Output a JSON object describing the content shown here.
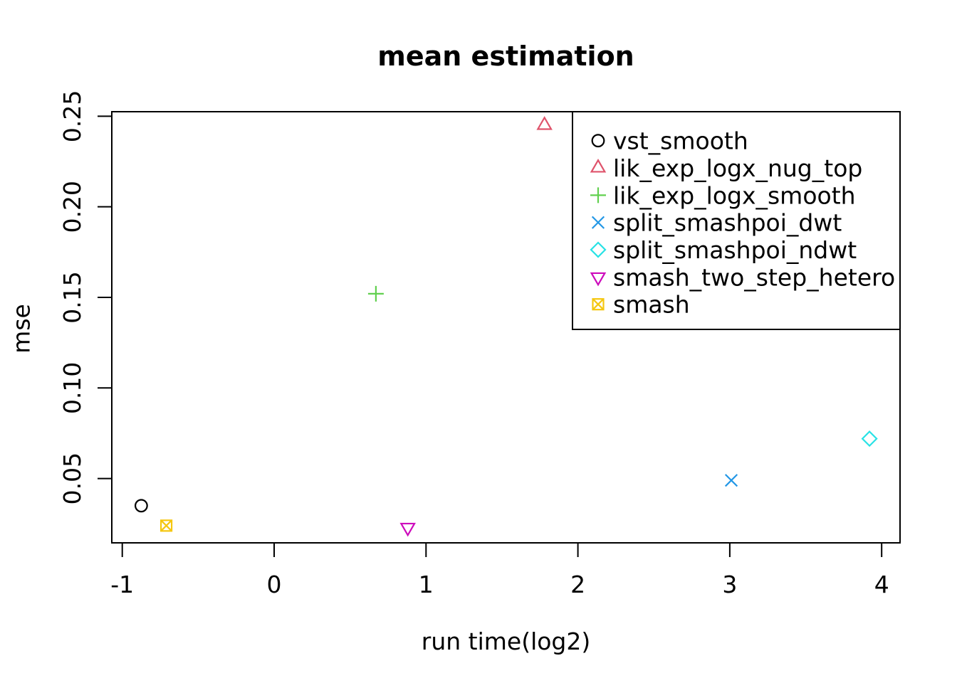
{
  "title": "mean estimation",
  "chart_data": {
    "type": "scatter",
    "title": "mean estimation",
    "xlabel": "run time(log2)",
    "ylabel": "mse",
    "xlim": [
      -1.069,
      4.121
    ],
    "ylim": [
      0.0145,
      0.2525
    ],
    "x_tick_values": [
      -1,
      0,
      1,
      2,
      3,
      4
    ],
    "x_tick_labels": [
      "-1",
      "0",
      "1",
      "2",
      "3",
      "4"
    ],
    "y_tick_values": [
      0.05,
      0.1,
      0.15,
      0.2,
      0.25
    ],
    "y_tick_labels": [
      "0.05",
      "0.10",
      "0.15",
      "0.20",
      "0.25"
    ],
    "grid": false,
    "legend_position": "top-right",
    "frame_color": "#000000",
    "background_color": "#ffffff",
    "series": [
      {
        "name": "vst_smooth",
        "marker": "circle",
        "color": "#000000",
        "x": -0.875,
        "y": 0.035
      },
      {
        "name": "lik_exp_logx_nug_top",
        "marker": "triangle-up",
        "color": "#DF536B",
        "x": 1.78,
        "y": 0.245
      },
      {
        "name": "lik_exp_logx_smooth",
        "marker": "plus",
        "color": "#61D04F",
        "x": 0.67,
        "y": 0.152
      },
      {
        "name": "split_smashpoi_dwt",
        "marker": "x",
        "color": "#2297E6",
        "x": 3.01,
        "y": 0.049
      },
      {
        "name": "split_smashpoi_ndwt",
        "marker": "diamond",
        "color": "#28E2E5",
        "x": 3.92,
        "y": 0.072
      },
      {
        "name": "smash_two_step_hetero",
        "marker": "triangle-down",
        "color": "#CD0BBC",
        "x": 0.88,
        "y": 0.023
      },
      {
        "name": "smash",
        "marker": "square-x",
        "color": "#F5C710",
        "x": -0.71,
        "y": 0.024
      }
    ]
  }
}
